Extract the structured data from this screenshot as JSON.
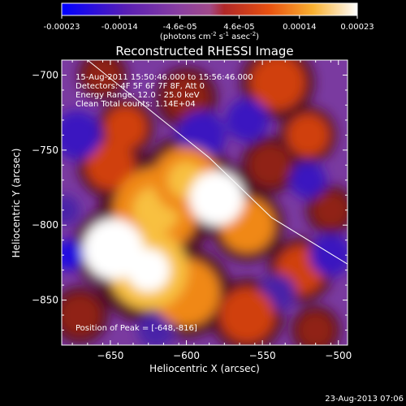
{
  "chart_data": {
    "type": "heatmap",
    "title": "Reconstructed RHESSI Image",
    "xlabel": "Heliocentric X (arcsec)",
    "ylabel": "Heliocentric Y (arcsec)",
    "xlim": [
      -682,
      -494
    ],
    "ylim": [
      -880,
      -690
    ],
    "x_ticks": [
      -650,
      -600,
      -550,
      -500
    ],
    "y_ticks": [
      -700,
      -750,
      -800,
      -850
    ],
    "colorbar": {
      "ticks": [
        "-0.00023",
        "-0.00014",
        "-4.6e-05",
        "4.6e-05",
        "0.00014",
        "0.00023"
      ],
      "range": [
        -0.00023,
        0.00023
      ],
      "unit_main": "(photons cm",
      "unit_exp1": "-2",
      "unit_mid": " s",
      "unit_exp2": "-1",
      "unit_end": " asec",
      "unit_exp3": "-2",
      "unit_close": ")",
      "colormap": [
        "#0000ff",
        "#5a1fb4",
        "#7a3aa0",
        "#9a4a8a",
        "#c03020",
        "#e86010",
        "#f8b030",
        "#ffffff"
      ]
    },
    "annotations": {
      "time_range": "15-Aug-2011 15:50:46.000 to 15:56:46.000",
      "detectors": "Detectors: 4F 5F 6F 7F 8F, Att 0",
      "energy": "Energy Range: 12.0 - 25.0 keV",
      "clean": "Clean    Total counts: 1.14E+04",
      "peak": "Position of Peak = [-648,-816]"
    },
    "peak": {
      "x": -648,
      "y": -816
    },
    "blobs": [
      {
        "x": -648,
        "y": -816,
        "r": 20,
        "v": 1.0
      },
      {
        "x": -625,
        "y": -830,
        "r": 26,
        "v": 0.75
      },
      {
        "x": -620,
        "y": -790,
        "r": 28,
        "v": 0.7
      },
      {
        "x": -580,
        "y": -782,
        "r": 18,
        "v": 0.95
      },
      {
        "x": -600,
        "y": -770,
        "r": 22,
        "v": 0.7
      },
      {
        "x": -560,
        "y": -800,
        "r": 18,
        "v": 0.6
      },
      {
        "x": -600,
        "y": -845,
        "r": 22,
        "v": 0.6
      },
      {
        "x": -560,
        "y": -860,
        "r": 18,
        "v": 0.55
      },
      {
        "x": -525,
        "y": -830,
        "r": 16,
        "v": 0.45
      },
      {
        "x": -650,
        "y": -760,
        "r": 16,
        "v": 0.5
      },
      {
        "x": -640,
        "y": -735,
        "r": 14,
        "v": 0.45
      },
      {
        "x": -600,
        "y": -715,
        "r": 15,
        "v": 0.4
      },
      {
        "x": -540,
        "y": -705,
        "r": 18,
        "v": 0.5
      },
      {
        "x": -520,
        "y": -740,
        "r": 14,
        "v": 0.45
      },
      {
        "x": -545,
        "y": -760,
        "r": 14,
        "v": 0.4
      },
      {
        "x": -505,
        "y": -790,
        "r": 12,
        "v": 0.4
      },
      {
        "x": -670,
        "y": -860,
        "r": 14,
        "v": 0.35
      },
      {
        "x": -655,
        "y": -700,
        "r": 12,
        "v": 0.35
      },
      {
        "x": -515,
        "y": -870,
        "r": 12,
        "v": 0.35
      },
      {
        "x": -678,
        "y": -820,
        "r": 10,
        "v": -0.9
      },
      {
        "x": -672,
        "y": -740,
        "r": 16,
        "v": -0.6
      },
      {
        "x": -590,
        "y": -740,
        "r": 16,
        "v": -0.6
      },
      {
        "x": -560,
        "y": -730,
        "r": 14,
        "v": -0.6
      },
      {
        "x": -520,
        "y": -770,
        "r": 12,
        "v": -0.7
      },
      {
        "x": -505,
        "y": -820,
        "r": 14,
        "v": -0.6
      },
      {
        "x": -540,
        "y": -845,
        "r": 12,
        "v": -0.5
      },
      {
        "x": -680,
        "y": -790,
        "r": 10,
        "v": -0.5
      },
      {
        "x": -620,
        "y": -870,
        "r": 12,
        "v": -0.4
      }
    ],
    "limb_line": [
      [
        -665,
        -690
      ],
      [
        -585,
        -755
      ],
      [
        -544,
        -795
      ],
      [
        -494,
        -826
      ]
    ]
  },
  "footer": {
    "timestamp": "23-Aug-2013 07:06"
  }
}
